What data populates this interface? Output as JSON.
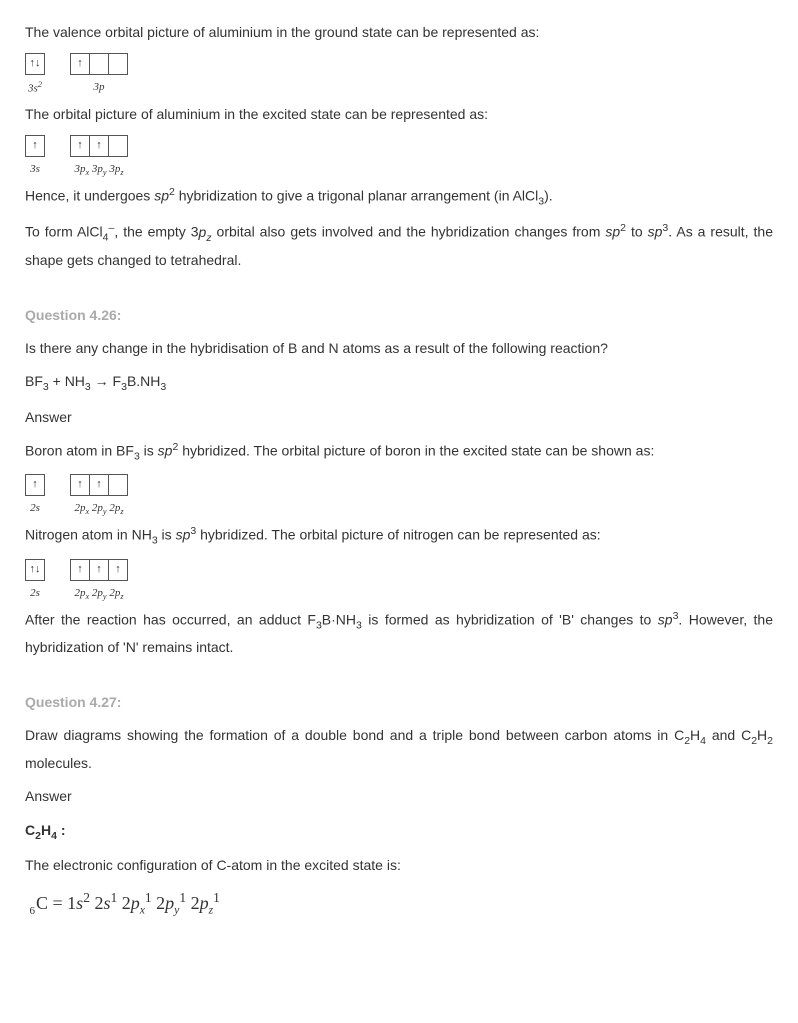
{
  "intro1": "The valence orbital picture of aluminium in the ground state can be represented as:",
  "orb1": {
    "g1": {
      "cells": [
        "↑↓"
      ],
      "label": "3s²"
    },
    "g2": {
      "cells": [
        "↑",
        "",
        ""
      ],
      "label": "3p"
    }
  },
  "intro2": "The orbital picture of aluminium in the excited state can be represented as:",
  "orb2": {
    "g1": {
      "cells": [
        "↑"
      ],
      "label": "3s"
    },
    "g2": {
      "cells": [
        "↑",
        "↑",
        ""
      ],
      "label": "3pₓ 3pᵧ 3p_z"
    }
  },
  "para1a": "Hence, it undergoes ",
  "para1b": " hybridization to give a trigonal planar arrangement (in AlCl",
  "para1c": ").",
  "para2a": "To form AlCl",
  "para2b": ", the empty ",
  "para2c": " orbital also gets involved and the hybridization changes from ",
  "para2d": " to ",
  "para2e": ". As a result, the shape gets changed to tetrahedral.",
  "q426": {
    "title": "Question 4.26:",
    "q1": "Is there any change in the hybridisation of B and N atoms as a result of the following reaction?",
    "eq": "BF₃ + NH₃ → F₃B.NH₃",
    "ans": "Answer",
    "p1a": "Boron atom in BF",
    "p1b": " is ",
    "p1c": " hybridized. The orbital picture of boron in the excited state can be shown as:",
    "orbB": {
      "g1": {
        "cells": [
          "↑"
        ],
        "label": "2s"
      },
      "g2": {
        "cells": [
          "↑",
          "↑",
          ""
        ],
        "label": "2pₓ 2pᵧ 2p_z"
      }
    },
    "p2a": "Nitrogen atom in NH",
    "p2b": " is ",
    "p2c": " hybridized. The orbital picture of nitrogen can be represented as:",
    "orbN": {
      "g1": {
        "cells": [
          "↑↓"
        ],
        "label": "2s"
      },
      "g2": {
        "cells": [
          "↑",
          "↑",
          "↑"
        ],
        "label": "2pₓ 2pᵧ 2p_z"
      }
    },
    "p3a": "After the reaction has occurred, an adduct F",
    "p3b": "B·NH",
    "p3c": " is formed as hybridization of 'B' changes to ",
    "p3d": ". However, the hybridization of 'N' remains intact."
  },
  "q427": {
    "title": "Question 4.27:",
    "q1a": "Draw diagrams showing the formation of a double bond and a triple bond between carbon atoms in C",
    "q1b": "H",
    "q1c": " and C",
    "q1d": "H",
    "q1e": " molecules.",
    "ans": "Answer",
    "h1": "C₂H₄ :",
    "p1": "The electronic configuration of C-atom in the excited state is:",
    "econf_pre": "6",
    "econf": "C = 1s² 2s¹ 2pₓ¹ 2pᵧ¹ 2p_z¹"
  }
}
